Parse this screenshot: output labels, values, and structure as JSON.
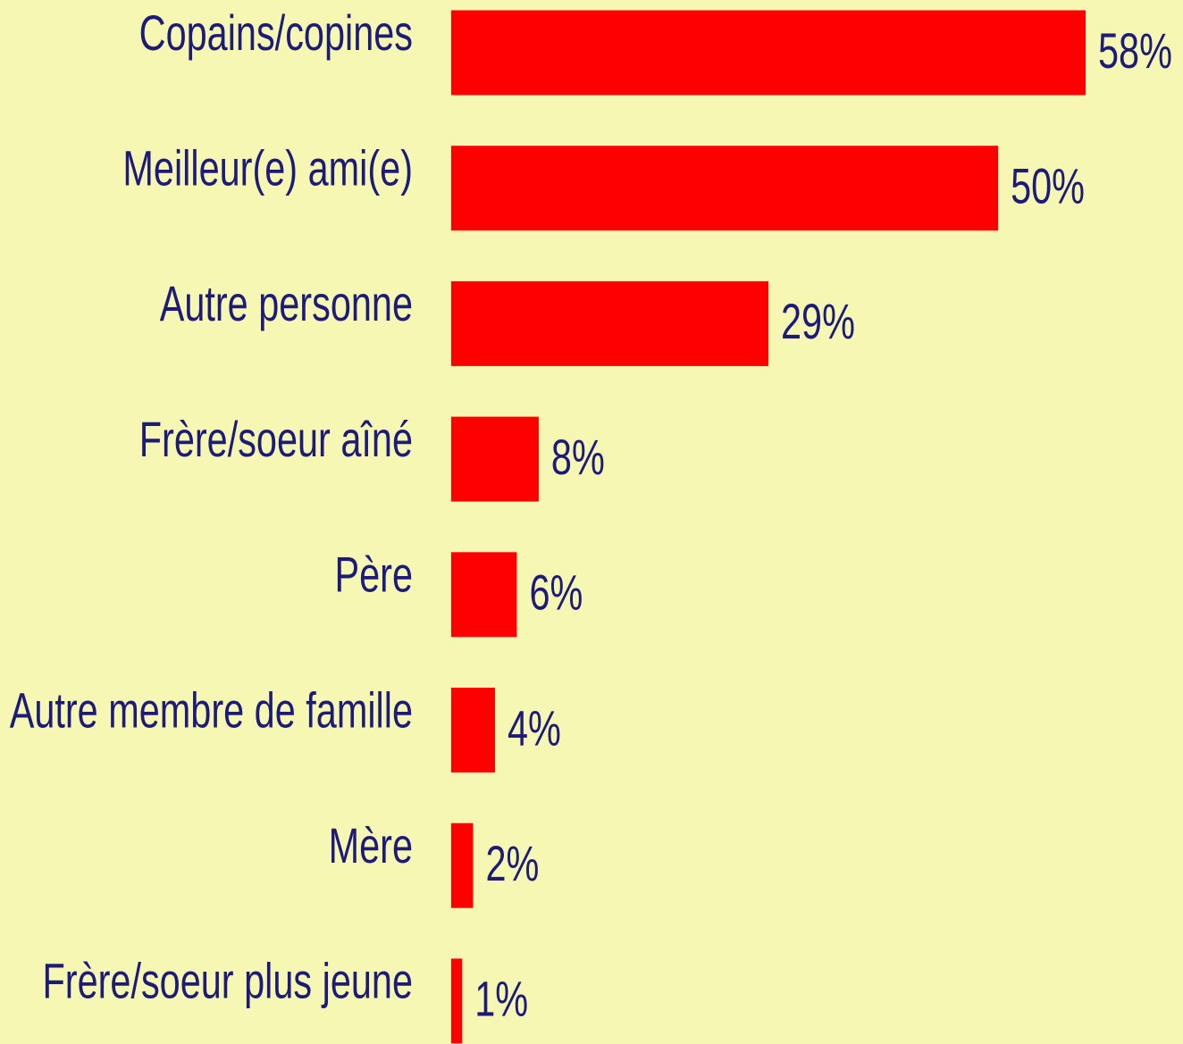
{
  "chart_data": {
    "type": "bar",
    "orientation": "horizontal",
    "categories": [
      "Copains/copines",
      "Meilleur(e) ami(e)",
      "Autre personne",
      "Frère/soeur aîné",
      "Père",
      "Autre membre de famille",
      "Mère",
      "Frère/soeur plus jeune"
    ],
    "values": [
      58,
      50,
      29,
      8,
      6,
      4,
      2,
      1
    ],
    "value_labels": [
      "58%",
      "50%",
      "29%",
      "8%",
      "6%",
      "4%",
      "2%",
      "1%"
    ],
    "color": "#ff0000"
  }
}
